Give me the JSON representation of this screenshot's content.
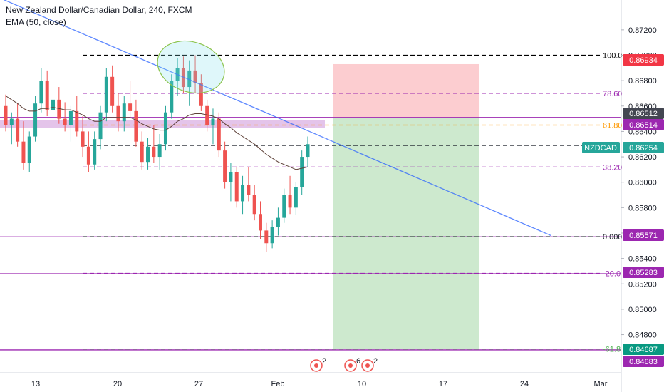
{
  "legend": {
    "symbol_title": "New Zealand Dollar/Canadian Dollar, 240, FXCM",
    "indicator": "EMA (50, close)"
  },
  "price_axis": {
    "ticks": [
      "0.87200",
      "0.87000",
      "0.86800",
      "0.86600",
      "0.86400",
      "0.86200",
      "0.86000",
      "0.85800",
      "0.85600",
      "0.85400",
      "0.85200",
      "0.85000",
      "0.84800"
    ],
    "tags": [
      {
        "label": "0.86934",
        "bg": "#f23645",
        "fg": "#ffffff"
      },
      {
        "label": "0.86512",
        "bg": "#434651",
        "fg": "#ffffff"
      },
      {
        "label": "0.86514",
        "bg": "#9c27b0",
        "fg": "#ffffff"
      },
      {
        "label": "0.86254",
        "bg": "#26a69a",
        "fg": "#ffffff"
      },
      {
        "label": "0.85571",
        "bg": "#9c27b0",
        "fg": "#ffffff"
      },
      {
        "label": "0.85283",
        "bg": "#9c27b0",
        "fg": "#ffffff"
      },
      {
        "label": "0.84687",
        "bg": "#089981",
        "fg": "#ffffff"
      },
      {
        "label": "0.84683",
        "bg": "#9c27b0",
        "fg": "#ffffff"
      }
    ],
    "symbol_tag": "NZDCAD"
  },
  "time_axis": {
    "labels": [
      "13",
      "20",
      "27",
      "Feb",
      "10",
      "17",
      "24",
      "Mar"
    ]
  },
  "fib_levels": [
    {
      "label": "100.0",
      "price": 0.87,
      "color": "#000000"
    },
    {
      "label": "78.60",
      "price": 0.867,
      "color": "#9c27b0"
    },
    {
      "label": "61.80",
      "price": 0.8645,
      "color": "#ff9800"
    },
    {
      "label": "50.0",
      "price": 0.8629,
      "color": "#131722"
    },
    {
      "label": "38.20",
      "price": 0.8612,
      "color": "#9c27b0"
    },
    {
      "label": "0.000",
      "price": 0.85571,
      "color": "#131722"
    },
    {
      "label": "-20.0",
      "price": 0.85283,
      "color": "#9c27b0"
    },
    {
      "label": "-61.8",
      "price": 0.84687,
      "color": "#4caf50"
    }
  ],
  "events": [
    {
      "count": "2"
    },
    {
      "count": "6"
    },
    {
      "count": "2"
    }
  ],
  "chart_data": {
    "type": "candlestick",
    "title": "New Zealand Dollar/Canadian Dollar, 240, FXCM",
    "ylim": [
      0.845,
      0.8739
    ],
    "x_labels": [
      "13",
      "20",
      "27",
      "Feb",
      "10",
      "17",
      "24",
      "Mar"
    ],
    "candles": [
      [
        0.866,
        0.8669,
        0.864,
        0.8645
      ],
      [
        0.8645,
        0.8655,
        0.863,
        0.865
      ],
      [
        0.865,
        0.8662,
        0.8628,
        0.8632
      ],
      [
        0.8632,
        0.8648,
        0.861,
        0.8615
      ],
      [
        0.8615,
        0.864,
        0.8608,
        0.8636
      ],
      [
        0.8636,
        0.8668,
        0.8632,
        0.8662
      ],
      [
        0.8662,
        0.869,
        0.8655,
        0.868
      ],
      [
        0.868,
        0.8688,
        0.8652,
        0.8657
      ],
      [
        0.8657,
        0.8672,
        0.8645,
        0.8665
      ],
      [
        0.8665,
        0.8675,
        0.8646,
        0.865
      ],
      [
        0.865,
        0.8663,
        0.864,
        0.8645
      ],
      [
        0.8645,
        0.866,
        0.8632,
        0.8656
      ],
      [
        0.8656,
        0.8668,
        0.8636,
        0.864
      ],
      [
        0.864,
        0.8652,
        0.862,
        0.8628
      ],
      [
        0.8628,
        0.864,
        0.8608,
        0.8614
      ],
      [
        0.8614,
        0.864,
        0.861,
        0.8634
      ],
      [
        0.8634,
        0.866,
        0.8626,
        0.8655
      ],
      [
        0.8655,
        0.869,
        0.8648,
        0.8683
      ],
      [
        0.8683,
        0.8692,
        0.8655,
        0.866
      ],
      [
        0.866,
        0.867,
        0.864,
        0.8648
      ],
      [
        0.8648,
        0.8668,
        0.864,
        0.8662
      ],
      [
        0.8662,
        0.868,
        0.865,
        0.8656
      ],
      [
        0.8656,
        0.8665,
        0.8628,
        0.8632
      ],
      [
        0.8632,
        0.864,
        0.861,
        0.8616
      ],
      [
        0.8616,
        0.8635,
        0.861,
        0.8628
      ],
      [
        0.8628,
        0.8645,
        0.8615,
        0.862
      ],
      [
        0.862,
        0.8638,
        0.861,
        0.863
      ],
      [
        0.863,
        0.866,
        0.8625,
        0.8655
      ],
      [
        0.8655,
        0.8685,
        0.865,
        0.868
      ],
      [
        0.868,
        0.8698,
        0.8668,
        0.869
      ],
      [
        0.869,
        0.8699,
        0.867,
        0.8675
      ],
      [
        0.8675,
        0.8696,
        0.866,
        0.8688
      ],
      [
        0.8688,
        0.87,
        0.867,
        0.8678
      ],
      [
        0.8678,
        0.8685,
        0.8656,
        0.866
      ],
      [
        0.866,
        0.8665,
        0.864,
        0.8645
      ],
      [
        0.8645,
        0.8658,
        0.863,
        0.865
      ],
      [
        0.865,
        0.8655,
        0.862,
        0.8625
      ],
      [
        0.8625,
        0.8632,
        0.8595,
        0.86
      ],
      [
        0.86,
        0.8615,
        0.8585,
        0.8608
      ],
      [
        0.8608,
        0.8612,
        0.858,
        0.8585
      ],
      [
        0.8585,
        0.8605,
        0.8575,
        0.8598
      ],
      [
        0.8598,
        0.8612,
        0.8585,
        0.859
      ],
      [
        0.859,
        0.8598,
        0.857,
        0.8575
      ],
      [
        0.8575,
        0.8585,
        0.8555,
        0.8562
      ],
      [
        0.8562,
        0.8568,
        0.8545,
        0.8552
      ],
      [
        0.8552,
        0.857,
        0.8548,
        0.8565
      ],
      [
        0.8565,
        0.858,
        0.8558,
        0.8572
      ],
      [
        0.8572,
        0.8595,
        0.8568,
        0.859
      ],
      [
        0.859,
        0.8605,
        0.8575,
        0.858
      ],
      [
        0.858,
        0.86,
        0.8574,
        0.8596
      ],
      [
        0.8596,
        0.8625,
        0.859,
        0.862
      ],
      [
        0.862,
        0.8636,
        0.8612,
        0.863
      ]
    ],
    "ema": [
      0.8668,
      0.8665,
      0.8662,
      0.8658,
      0.8656,
      0.8656,
      0.8658,
      0.8658,
      0.8659,
      0.8658,
      0.8657,
      0.8657,
      0.8655,
      0.8653,
      0.865,
      0.8648,
      0.8648,
      0.8651,
      0.8651,
      0.8651,
      0.8651,
      0.8651,
      0.8649,
      0.8646,
      0.8644,
      0.8642,
      0.8641,
      0.8641,
      0.8644,
      0.8648,
      0.865,
      0.8653,
      0.8654,
      0.8654,
      0.8653,
      0.8652,
      0.865,
      0.8646,
      0.8643,
      0.8639,
      0.8636,
      0.8633,
      0.863,
      0.8626,
      0.8622,
      0.8619,
      0.8616,
      0.8614,
      0.8612,
      0.861,
      0.8611,
      0.8612
    ],
    "trendline": {
      "start": [
        0,
        0.8745
      ],
      "end": [
        0.83,
        0.8558
      ]
    },
    "resistance_zone": [
      0.8643,
      0.8649
    ],
    "support_lines": [
      0.8651,
      0.8557,
      0.8528,
      0.8468
    ],
    "position": {
      "entry": 0.8651,
      "stop": 0.8693,
      "target": 0.8469
    }
  }
}
